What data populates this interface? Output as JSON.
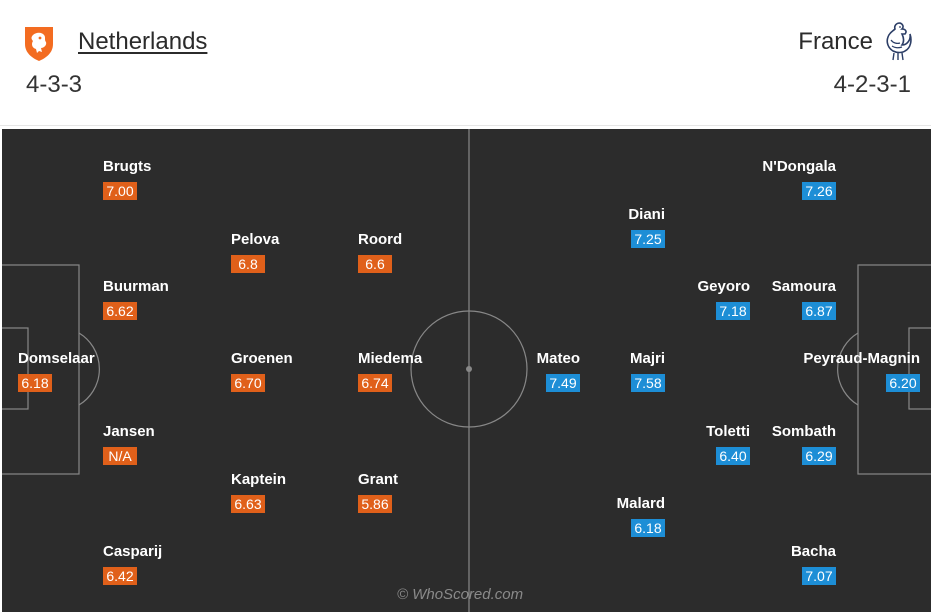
{
  "home": {
    "name": "Netherlands",
    "formation": "4-3-3",
    "crest_icon": "lion-shield-icon",
    "color": "#e0601a",
    "players": [
      {
        "name": "Brugts",
        "rating": "7.00"
      },
      {
        "name": "Pelova",
        "rating": "6.8"
      },
      {
        "name": "Roord",
        "rating": "6.6"
      },
      {
        "name": "Buurman",
        "rating": "6.62"
      },
      {
        "name": "Domselaar",
        "rating": "6.18"
      },
      {
        "name": "Groenen",
        "rating": "6.70"
      },
      {
        "name": "Miedema",
        "rating": "6.74"
      },
      {
        "name": "Jansen",
        "rating": "N/A"
      },
      {
        "name": "Kaptein",
        "rating": "6.63"
      },
      {
        "name": "Grant",
        "rating": "5.86"
      },
      {
        "name": "Casparij",
        "rating": "6.42"
      }
    ]
  },
  "away": {
    "name": "France",
    "formation": "4-2-3-1",
    "crest_icon": "rooster-icon",
    "color": "#1d8ed6",
    "players": [
      {
        "name": "N'Dongala",
        "rating": "7.26"
      },
      {
        "name": "Diani",
        "rating": "7.25"
      },
      {
        "name": "Geyoro",
        "rating": "7.18"
      },
      {
        "name": "Samoura",
        "rating": "6.87"
      },
      {
        "name": "Mateo",
        "rating": "7.49"
      },
      {
        "name": "Majri",
        "rating": "7.58"
      },
      {
        "name": "Peyraud-Magnin",
        "rating": "6.20"
      },
      {
        "name": "Toletti",
        "rating": "6.40"
      },
      {
        "name": "Sombath",
        "rating": "6.29"
      },
      {
        "name": "Malard",
        "rating": "6.18"
      },
      {
        "name": "Bacha",
        "rating": "7.07"
      }
    ]
  },
  "watermark": "© WhoScored.com"
}
